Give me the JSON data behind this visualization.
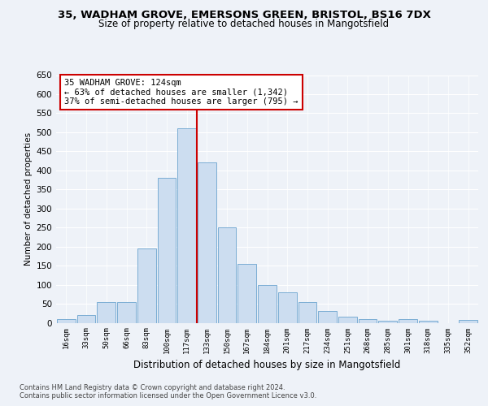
{
  "title_line1": "35, WADHAM GROVE, EMERSONS GREEN, BRISTOL, BS16 7DX",
  "title_line2": "Size of property relative to detached houses in Mangotsfield",
  "xlabel": "Distribution of detached houses by size in Mangotsfield",
  "ylabel": "Number of detached properties",
  "annotation_line1": "35 WADHAM GROVE: 124sqm",
  "annotation_line2": "← 63% of detached houses are smaller (1,342)",
  "annotation_line3": "37% of semi-detached houses are larger (795) →",
  "footnote1": "Contains HM Land Registry data © Crown copyright and database right 2024.",
  "footnote2": "Contains public sector information licensed under the Open Government Licence v3.0.",
  "categories": [
    "16sqm",
    "33sqm",
    "50sqm",
    "66sqm",
    "83sqm",
    "100sqm",
    "117sqm",
    "133sqm",
    "150sqm",
    "167sqm",
    "184sqm",
    "201sqm",
    "217sqm",
    "234sqm",
    "251sqm",
    "268sqm",
    "285sqm",
    "301sqm",
    "318sqm",
    "335sqm",
    "352sqm"
  ],
  "values": [
    10,
    20,
    55,
    55,
    195,
    380,
    510,
    420,
    250,
    155,
    100,
    80,
    55,
    30,
    15,
    10,
    5,
    10,
    5,
    0,
    8
  ],
  "bar_color": "#ccddf0",
  "bar_edge_color": "#7aadd4",
  "vline_color": "#cc0000",
  "vline_pos": 6.5,
  "annotation_box_edge_color": "#cc0000",
  "ylim": [
    0,
    650
  ],
  "yticks": [
    0,
    50,
    100,
    150,
    200,
    250,
    300,
    350,
    400,
    450,
    500,
    550,
    600,
    650
  ],
  "background_color": "#eef2f8",
  "grid_color": "#ffffff",
  "title_fontsize": 9.5,
  "subtitle_fontsize": 8.5
}
